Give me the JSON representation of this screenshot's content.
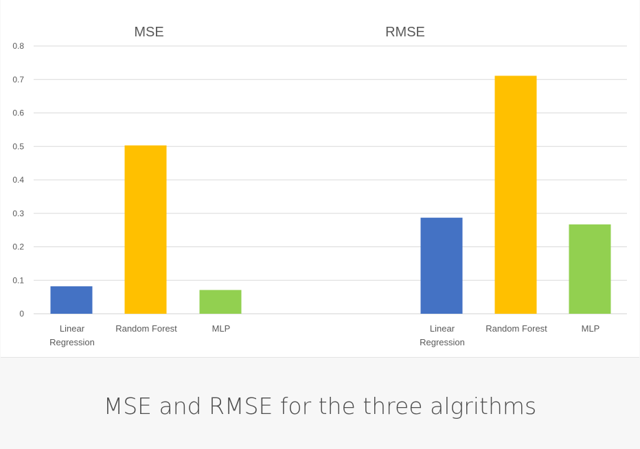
{
  "chart_data": {
    "type": "bar",
    "ylim": [
      0,
      0.8
    ],
    "yticks": [
      "0",
      "0.1",
      "0.2",
      "0.3",
      "0.4",
      "0.5",
      "0.6",
      "0.7",
      "0.8"
    ],
    "grid": true,
    "groups": [
      {
        "title": "MSE",
        "categories": [
          "Linear\nRegression",
          "Random Forest",
          "MLP"
        ],
        "values": [
          0.082,
          0.503,
          0.071
        ]
      },
      {
        "title": "RMSE",
        "categories": [
          "Linear\nRegression",
          "Random Forest",
          "MLP"
        ],
        "values": [
          0.287,
          0.711,
          0.267
        ]
      }
    ],
    "colors": [
      "#4472c4",
      "#ffc000",
      "#92d050"
    ]
  },
  "caption": "MSE and RMSE for the three algrithms"
}
